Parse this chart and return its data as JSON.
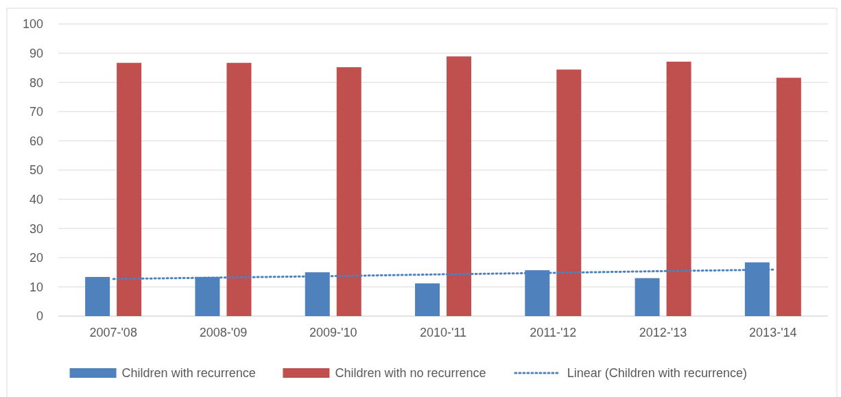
{
  "chart_data": {
    "type": "bar",
    "categories": [
      "2007-'08",
      "2008-'09",
      "2009-'10",
      "2010-'11",
      "2011-'12",
      "2012-'13",
      "2013-'14"
    ],
    "series": [
      {
        "name": "Children with recurrence",
        "color": "#4f81bd",
        "values": [
          13.4,
          13.4,
          15.0,
          11.2,
          15.7,
          13.0,
          18.4
        ]
      },
      {
        "name": "Children with no recurrence",
        "color": "#c0504d",
        "values": [
          86.7,
          86.7,
          85.2,
          88.9,
          84.4,
          87.1,
          81.6
        ]
      },
      {
        "name": "Linear (Children with recurrence)",
        "type": "line",
        "color": "#4f81bd",
        "line_style": "dotted",
        "values": [
          12.7,
          13.2,
          13.7,
          14.3,
          14.8,
          15.4,
          15.9
        ]
      }
    ],
    "ylim": [
      0,
      100
    ],
    "yticks": [
      0,
      10,
      20,
      30,
      40,
      50,
      60,
      70,
      80,
      90,
      100
    ],
    "grid": "y",
    "legend": "bottom"
  }
}
